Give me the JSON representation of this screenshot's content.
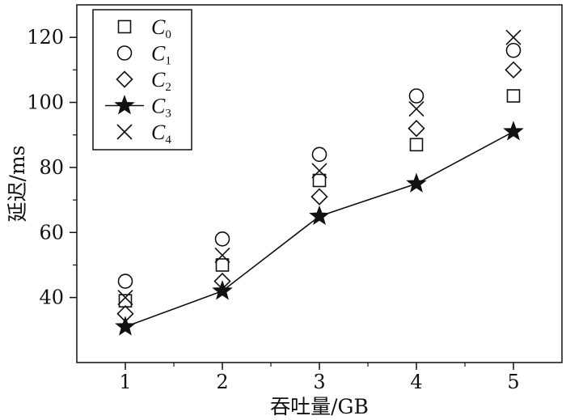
{
  "chart_data": {
    "type": "scatter",
    "xlabel": "吞吐量/GB",
    "ylabel": "延迟/ms",
    "xlim": [
      0.5,
      5.5
    ],
    "ylim": [
      20,
      130
    ],
    "x_ticks": [
      1,
      2,
      3,
      4,
      5
    ],
    "y_ticks": [
      40,
      60,
      80,
      100,
      120
    ],
    "legend_position": "top-left",
    "series": [
      {
        "name": "C",
        "sub": "0",
        "marker": "square",
        "line": false,
        "x": [
          1,
          2,
          3,
          4,
          5
        ],
        "y": [
          39,
          50,
          76,
          87,
          102
        ]
      },
      {
        "name": "C",
        "sub": "1",
        "marker": "circle",
        "line": false,
        "x": [
          1,
          2,
          3,
          4,
          5
        ],
        "y": [
          45,
          58,
          84,
          102,
          116
        ]
      },
      {
        "name": "C",
        "sub": "2",
        "marker": "diamond",
        "line": false,
        "x": [
          1,
          2,
          3,
          4,
          5
        ],
        "y": [
          35,
          45,
          71,
          92,
          110
        ]
      },
      {
        "name": "C",
        "sub": "3",
        "marker": "star",
        "line": true,
        "x": [
          1,
          2,
          3,
          4,
          5
        ],
        "y": [
          31,
          42,
          65,
          75,
          91
        ]
      },
      {
        "name": "C",
        "sub": "4",
        "marker": "x",
        "line": false,
        "x": [
          1,
          2,
          3,
          4,
          5
        ],
        "y": [
          40,
          53,
          79,
          98,
          120
        ]
      }
    ]
  }
}
